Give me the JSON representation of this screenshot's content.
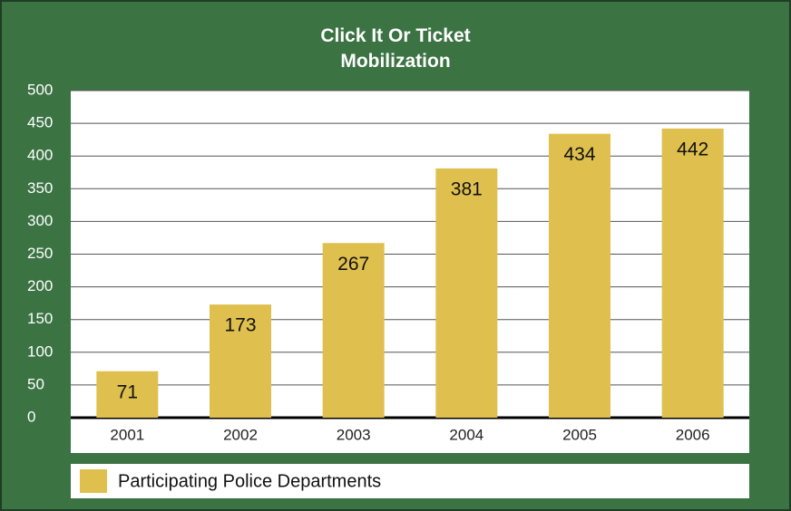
{
  "chart_data": {
    "type": "bar",
    "title": "Click It Or Ticket Mobilization",
    "categories": [
      "2001",
      "2002",
      "2003",
      "2004",
      "2005",
      "2006"
    ],
    "series": [
      {
        "name": "Participating Police Departments",
        "color": "#dfc04e",
        "values": [
          71,
          173,
          267,
          381,
          434,
          442
        ]
      }
    ],
    "ylim": [
      0,
      500
    ],
    "yticks": [
      0,
      50,
      100,
      150,
      200,
      250,
      300,
      350,
      400,
      450,
      500
    ],
    "grid": true
  }
}
